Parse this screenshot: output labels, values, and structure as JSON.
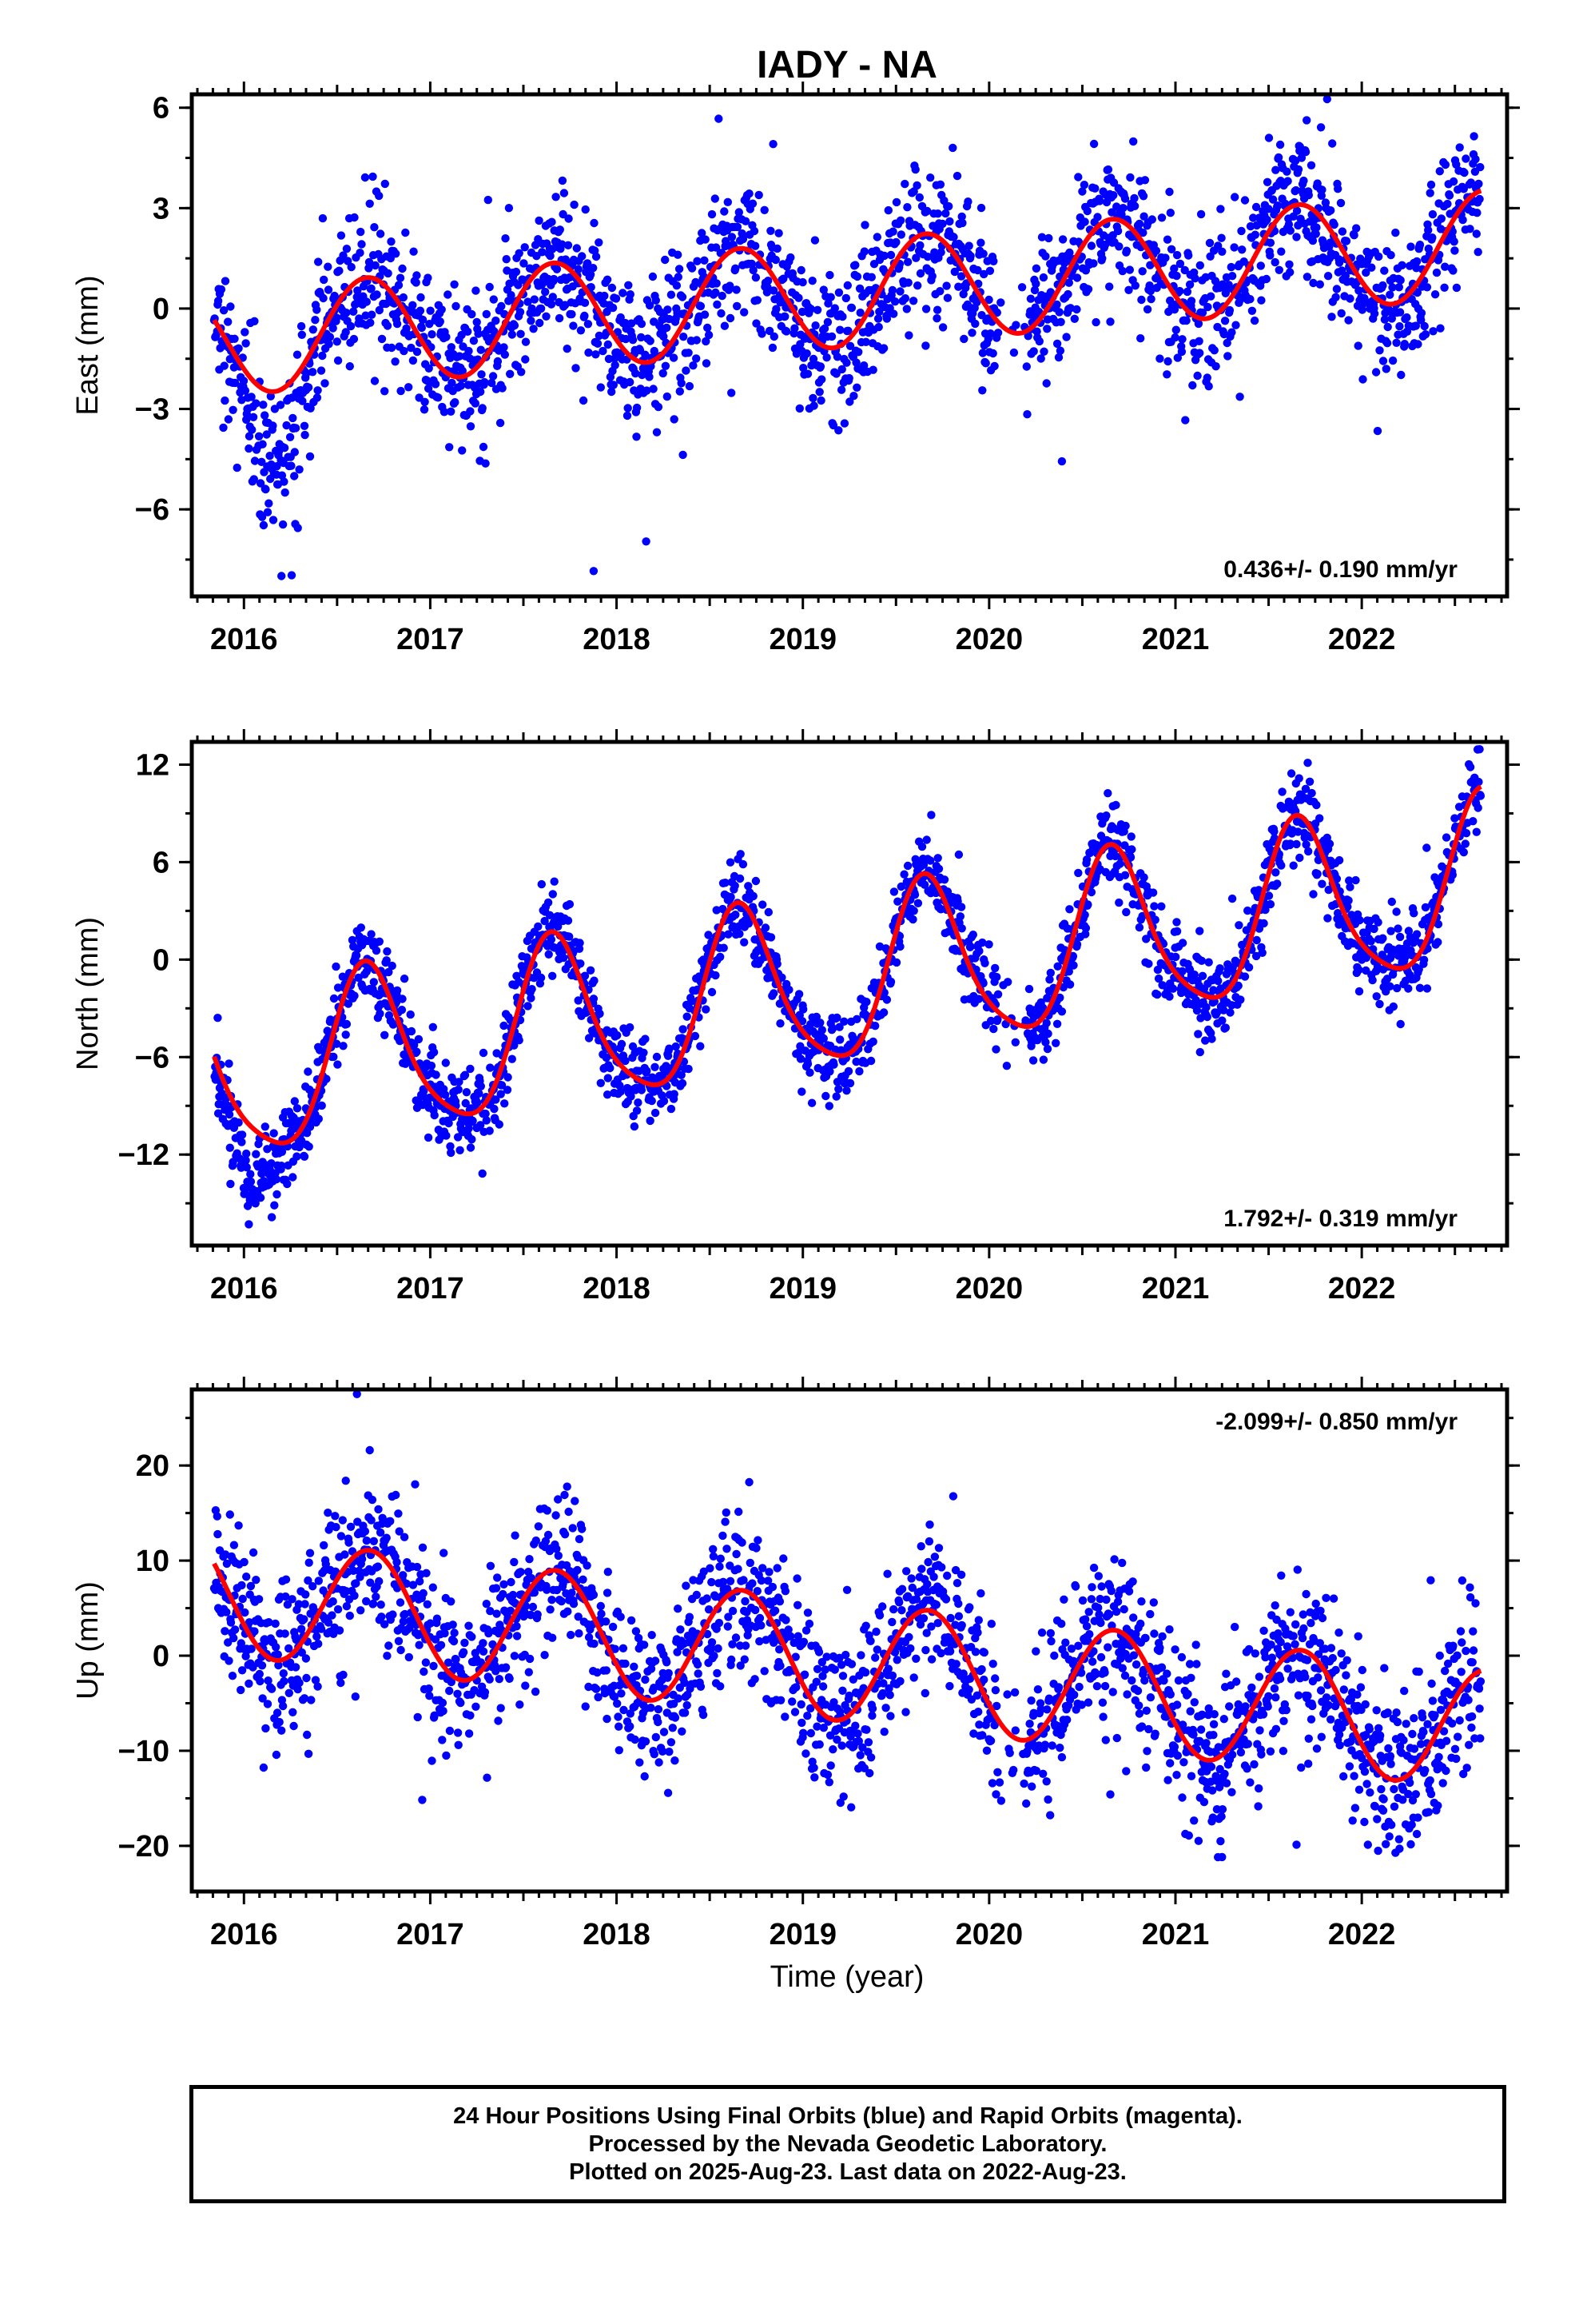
{
  "title": "IADY - NA",
  "xlabel": "Time (year)",
  "footer": {
    "line1": "24 Hour Positions Using Final Orbits (blue) and Rapid Orbits (magenta).",
    "line2": "Processed by the Nevada Geodetic Laboratory.",
    "line3": "Plotted on 2025-Aug-23. Last data on 2022-Aug-23."
  },
  "colors": {
    "data_points": "#0000ff",
    "model_fit": "#ff0000"
  },
  "chart_data": [
    {
      "type": "scatter",
      "component": "east",
      "ylabel": "East (mm)",
      "rate": "0.436+/- 0.190 mm/yr",
      "rate_position": "bottom-right",
      "xlim": [
        2015.72,
        2022.78
      ],
      "ylim": [
        -8.6,
        6.4
      ],
      "x_ticks": [
        2016,
        2017,
        2018,
        2019,
        2020,
        2021,
        2022
      ],
      "y_ticks": [
        -6,
        -3,
        0,
        3,
        6
      ],
      "data_range": [
        2015.84,
        2022.64
      ],
      "model": {
        "offset": 0.45,
        "trend": 0.436,
        "sin": -1.35,
        "cos": -0.85,
        "sin2": 0.0,
        "cos2": 0.0,
        "t0": 2019.23
      },
      "scatter_std": 1.1,
      "early_anomaly": {
        "start": 2015.95,
        "end": 2016.4,
        "depth": -2.8
      },
      "series": [
        {
          "name": "Final Orbits",
          "style": "points",
          "color": "#0000ff"
        },
        {
          "name": "Model",
          "style": "line",
          "color": "#ff0000"
        }
      ]
    },
    {
      "type": "scatter",
      "component": "north",
      "ylabel": "North (mm)",
      "rate": "1.792+/- 0.319 mm/yr",
      "rate_position": "bottom-right",
      "xlim": [
        2015.72,
        2022.78
      ],
      "ylim": [
        -17.6,
        13.4
      ],
      "x_ticks": [
        2016,
        2017,
        2018,
        2019,
        2020,
        2021,
        2022
      ],
      "y_ticks": [
        -12,
        -6,
        0,
        6,
        12
      ],
      "data_range": [
        2015.84,
        2022.64
      ],
      "model": {
        "offset": -1.4,
        "trend": 1.792,
        "sin": -4.4,
        "cos": -2.6,
        "sin2": 0.9,
        "cos2": 0.0,
        "t0": 2019.23
      },
      "scatter_std": 1.3,
      "early_anomaly": {
        "start": 2015.84,
        "end": 2016.25,
        "depth": -3.5
      },
      "series": [
        {
          "name": "Final Orbits",
          "style": "points",
          "color": "#0000ff"
        },
        {
          "name": "Model",
          "style": "line",
          "color": "#ff0000"
        }
      ]
    },
    {
      "type": "scatter",
      "component": "up",
      "ylabel": "Up (mm)",
      "rate": "-2.099+/- 0.850 mm/yr",
      "rate_position": "top-right",
      "xlim": [
        2015.72,
        2022.78
      ],
      "ylim": [
        -24.8,
        28.0
      ],
      "x_ticks": [
        2016,
        2017,
        2018,
        2019,
        2020,
        2021,
        2022
      ],
      "y_ticks": [
        -20,
        -10,
        0,
        10,
        20
      ],
      "data_range": [
        2015.84,
        2022.64
      ],
      "model": {
        "offset": -0.6,
        "trend": -2.099,
        "sin": -5.6,
        "cos": -2.9,
        "sin2": 0.0,
        "cos2": 0.0,
        "t0": 2019.23
      },
      "scatter_std": 4.2,
      "early_anomaly": null,
      "series": [
        {
          "name": "Final Orbits",
          "style": "points",
          "color": "#0000ff"
        },
        {
          "name": "Model",
          "style": "line",
          "color": "#ff0000"
        }
      ]
    }
  ]
}
